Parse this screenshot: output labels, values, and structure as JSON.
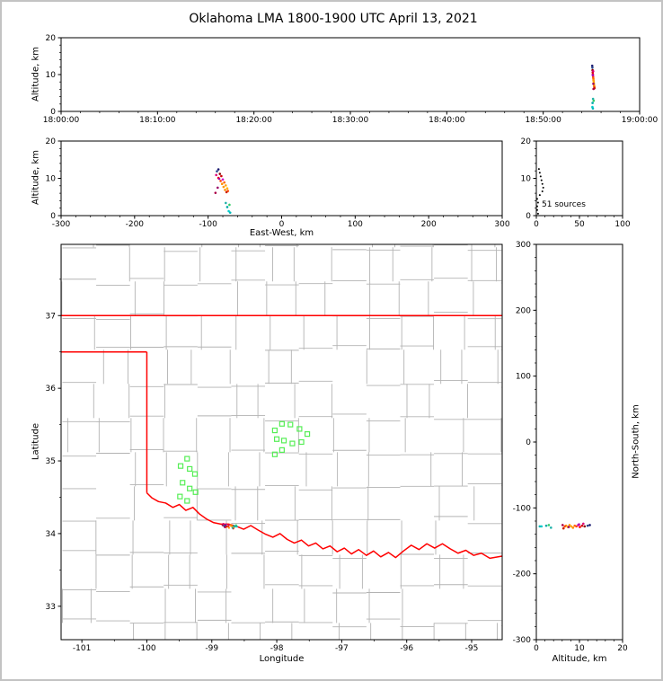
{
  "page": {
    "title": "Oklahoma LMA 1800-1900 UTC April 13, 2021"
  },
  "colors": {
    "axis": "#000000",
    "county": "#b3b3b3",
    "state_border": "#ff0000",
    "station": "#55ee55",
    "histogram": "#000000",
    "background": "#ffffff"
  },
  "chart_data": {
    "charts": [
      {
        "id": "time_height",
        "type": "scatter",
        "xlabel": "",
        "ylabel": "Altitude, km",
        "xlim": [
          0,
          3600
        ],
        "xticks": [
          0,
          600,
          1200,
          1800,
          2400,
          3000,
          3600
        ],
        "xtick_labels": [
          "18:00:00",
          "18:10:00",
          "18:20:00",
          "18:30:00",
          "18:40:00",
          "18:50:00",
          "19:00:00"
        ],
        "xminor_step": 120,
        "ylim": [
          0,
          20
        ],
        "yticks": [
          0,
          10,
          20
        ],
        "yminor_step": 2,
        "series": "sources",
        "x": "t",
        "y": "alt",
        "grid": false
      },
      {
        "id": "ew_height",
        "type": "scatter",
        "xlabel": "East-West, km",
        "ylabel": "Altitude, km",
        "xlim": [
          -300,
          300
        ],
        "xticks": [
          -300,
          -200,
          -100,
          0,
          100,
          200,
          300
        ],
        "xminor_step": 20,
        "ylim": [
          0,
          20
        ],
        "yticks": [
          0,
          10,
          20
        ],
        "yminor_step": 2,
        "series": "sources",
        "x": "ew",
        "y": "alt",
        "grid": false
      },
      {
        "id": "alt_histogram",
        "type": "scatter",
        "xlabel": "",
        "ylabel": "",
        "annotation": "51 sources",
        "xlim": [
          0,
          100
        ],
        "xticks": [
          0,
          50,
          100
        ],
        "xminor_step": 10,
        "ylim": [
          0,
          20
        ],
        "yticks": [
          0,
          10,
          20
        ],
        "yminor_step": 2,
        "series": "altitude_histogram",
        "x": "count",
        "y": "alt",
        "grid": false
      },
      {
        "id": "plan_view",
        "type": "scatter",
        "xlabel": "Longitude",
        "ylabel": "Latitude",
        "xlim": [
          -101.32,
          -94.53
        ],
        "xticks": [
          -101,
          -100,
          -99,
          -98,
          -97,
          -96,
          -95
        ],
        "xminor_step": 0.5,
        "ylim": [
          32.54,
          37.98
        ],
        "yticks": [
          33,
          34,
          35,
          36,
          37
        ],
        "yminor_step": 0.5,
        "series": "sources",
        "x": "lon",
        "y": "lat",
        "grid": false
      },
      {
        "id": "ns_height",
        "type": "scatter",
        "xlabel": "Altitude, km",
        "ylabel": "North-South, km",
        "xlim": [
          0,
          20
        ],
        "xticks": [
          0,
          10,
          20
        ],
        "xminor_step": 2,
        "ylim": [
          -300,
          300
        ],
        "yticks": [
          -300,
          -200,
          -100,
          0,
          100,
          200,
          300
        ],
        "yminor_step": 20,
        "series": "sources",
        "x": "alt",
        "y": "ns",
        "grid": false
      }
    ],
    "sources": [
      {
        "t": 3305,
        "ew": -86,
        "ns": -126,
        "alt": 12.4,
        "lon": -98.79,
        "lat": 34.115,
        "c": "#191970"
      },
      {
        "t": 3306,
        "ew": -88,
        "ns": -127,
        "alt": 11.9,
        "lon": -98.812,
        "lat": 34.106,
        "c": "#26428b"
      },
      {
        "t": 3307,
        "ew": -84,
        "ns": -128,
        "alt": 11.2,
        "lon": -98.768,
        "lat": 34.097,
        "c": "#8b0000"
      },
      {
        "t": 3308,
        "ew": -82,
        "ns": -127,
        "alt": 10.6,
        "lon": -98.746,
        "lat": 34.106,
        "c": "#cc0000"
      },
      {
        "t": 3309,
        "ew": -86,
        "ns": -129,
        "alt": 10.1,
        "lon": -98.79,
        "lat": 34.088,
        "c": "#ff0000"
      },
      {
        "t": 3310,
        "ew": -80,
        "ns": -126,
        "alt": 9.7,
        "lon": -98.724,
        "lat": 34.115,
        "c": "#cc00cc"
      },
      {
        "t": 3311,
        "ew": -83,
        "ns": -128,
        "alt": 9.3,
        "lon": -98.757,
        "lat": 34.097,
        "c": "#ff4500"
      },
      {
        "t": 3312,
        "ew": -78,
        "ns": -127,
        "alt": 8.9,
        "lon": -98.702,
        "lat": 34.106,
        "c": "#ff6600"
      },
      {
        "t": 3313,
        "ew": -81,
        "ns": -130,
        "alt": 8.5,
        "lon": -98.735,
        "lat": 34.079,
        "c": "#ff8c00"
      },
      {
        "t": 3314,
        "ew": -76,
        "ns": -128,
        "alt": 8.1,
        "lon": -98.681,
        "lat": 34.097,
        "c": "#ffa500"
      },
      {
        "t": 3315,
        "ew": -79,
        "ns": -126,
        "alt": 7.7,
        "lon": -98.713,
        "lat": 34.115,
        "c": "#ff9900"
      },
      {
        "t": 3316,
        "ew": -74,
        "ns": -129,
        "alt": 7.3,
        "lon": -98.659,
        "lat": 34.088,
        "c": "#ffb000"
      },
      {
        "t": 3317,
        "ew": -77,
        "ns": -127,
        "alt": 6.9,
        "lon": -98.691,
        "lat": 34.106,
        "c": "#ff8c00"
      },
      {
        "t": 3318,
        "ew": -73,
        "ns": -128,
        "alt": 6.6,
        "lon": -98.648,
        "lat": 34.097,
        "c": "#ff4500"
      },
      {
        "t": 3319,
        "ew": -75,
        "ns": -131,
        "alt": 6.3,
        "lon": -98.67,
        "lat": 34.07,
        "c": "#cc2200"
      },
      {
        "t": 3308,
        "ew": -85,
        "ns": -125,
        "alt": 9.9,
        "lon": -98.779,
        "lat": 34.124,
        "c": "#aa00aa"
      },
      {
        "t": 3312,
        "ew": -87,
        "ns": -129,
        "alt": 7.5,
        "lon": -98.801,
        "lat": 34.088,
        "c": "#990066"
      },
      {
        "t": 3306,
        "ew": -72,
        "ns": -128,
        "alt": 1.2,
        "lon": -98.637,
        "lat": 34.097,
        "c": "#00cccc"
      },
      {
        "t": 3307,
        "ew": -74,
        "ns": -127,
        "alt": 2.3,
        "lon": -98.659,
        "lat": 34.106,
        "c": "#00aaaa"
      },
      {
        "t": 3310,
        "ew": -76,
        "ns": -130,
        "alt": 3.4,
        "lon": -98.681,
        "lat": 34.079,
        "c": "#20b2aa"
      },
      {
        "t": 3311,
        "ew": -89,
        "ns": -124,
        "alt": 10.9,
        "lon": -98.823,
        "lat": 34.133,
        "c": "#dd0077"
      },
      {
        "t": 3313,
        "ew": -90,
        "ns": -126,
        "alt": 6.1,
        "lon": -98.834,
        "lat": 34.115,
        "c": "#aa0044"
      },
      {
        "t": 3309,
        "ew": -70,
        "ns": -128,
        "alt": 0.8,
        "lon": -98.615,
        "lat": 34.097,
        "c": "#00bbbb"
      },
      {
        "t": 3314,
        "ew": -71,
        "ns": -126,
        "alt": 2.9,
        "lon": -98.626,
        "lat": 34.115,
        "c": "#33cc66"
      }
    ],
    "altitude_histogram": [
      {
        "alt": 0.5,
        "count": 2
      },
      {
        "alt": 1.5,
        "count": 1
      },
      {
        "alt": 2.5,
        "count": 1
      },
      {
        "alt": 3.5,
        "count": 2
      },
      {
        "alt": 4.5,
        "count": 1
      },
      {
        "alt": 5.5,
        "count": 4
      },
      {
        "alt": 6.5,
        "count": 7
      },
      {
        "alt": 7.5,
        "count": 8
      },
      {
        "alt": 8.5,
        "count": 7
      },
      {
        "alt": 9.5,
        "count": 6
      },
      {
        "alt": 10.5,
        "count": 5
      },
      {
        "alt": 11.5,
        "count": 4
      },
      {
        "alt": 12.5,
        "count": 3
      }
    ],
    "stations": [
      {
        "lon": -99.38,
        "lat": 35.03
      },
      {
        "lon": -99.48,
        "lat": 34.93
      },
      {
        "lon": -99.34,
        "lat": 34.89
      },
      {
        "lon": -99.26,
        "lat": 34.82
      },
      {
        "lon": -99.45,
        "lat": 34.7
      },
      {
        "lon": -99.34,
        "lat": 34.62
      },
      {
        "lon": -99.49,
        "lat": 34.51
      },
      {
        "lon": -99.38,
        "lat": 34.45
      },
      {
        "lon": -99.25,
        "lat": 34.57
      },
      {
        "lon": -98.03,
        "lat": 35.42
      },
      {
        "lon": -97.92,
        "lat": 35.51
      },
      {
        "lon": -97.79,
        "lat": 35.5
      },
      {
        "lon": -97.65,
        "lat": 35.44
      },
      {
        "lon": -97.53,
        "lat": 35.37
      },
      {
        "lon": -98.0,
        "lat": 35.3
      },
      {
        "lon": -97.89,
        "lat": 35.28
      },
      {
        "lon": -97.76,
        "lat": 35.24
      },
      {
        "lon": -97.62,
        "lat": 35.26
      },
      {
        "lon": -97.92,
        "lat": 35.15
      },
      {
        "lon": -98.03,
        "lat": 35.09
      }
    ],
    "state_borders": [
      [
        [
          -101.32,
          37.0
        ],
        [
          -94.53,
          37.0
        ]
      ],
      [
        [
          -101.32,
          36.5
        ],
        [
          -100.0,
          36.5
        ]
      ],
      [
        [
          -100.0,
          36.5
        ],
        [
          -100.0,
          34.56
        ]
      ],
      [
        [
          -100.0,
          34.56
        ],
        [
          -99.92,
          34.49
        ],
        [
          -99.82,
          34.44
        ],
        [
          -99.71,
          34.42
        ],
        [
          -99.6,
          34.36
        ],
        [
          -99.5,
          34.4
        ],
        [
          -99.4,
          34.32
        ],
        [
          -99.29,
          34.36
        ],
        [
          -99.19,
          34.27
        ],
        [
          -99.08,
          34.2
        ],
        [
          -98.97,
          34.15
        ],
        [
          -98.86,
          34.13
        ],
        [
          -98.74,
          34.13
        ],
        [
          -98.62,
          34.1
        ],
        [
          -98.51,
          34.06
        ],
        [
          -98.4,
          34.11
        ],
        [
          -98.29,
          34.05
        ],
        [
          -98.17,
          33.99
        ],
        [
          -98.06,
          33.95
        ],
        [
          -97.95,
          34.0
        ],
        [
          -97.84,
          33.92
        ],
        [
          -97.73,
          33.87
        ],
        [
          -97.62,
          33.91
        ],
        [
          -97.51,
          33.83
        ],
        [
          -97.4,
          33.87
        ],
        [
          -97.29,
          33.79
        ],
        [
          -97.18,
          33.83
        ],
        [
          -97.07,
          33.75
        ],
        [
          -96.96,
          33.8
        ],
        [
          -96.85,
          33.72
        ],
        [
          -96.74,
          33.78
        ],
        [
          -96.62,
          33.7
        ],
        [
          -96.51,
          33.76
        ],
        [
          -96.4,
          33.68
        ],
        [
          -96.28,
          33.74
        ],
        [
          -96.17,
          33.67
        ],
        [
          -96.05,
          33.76
        ],
        [
          -95.93,
          33.84
        ],
        [
          -95.81,
          33.78
        ],
        [
          -95.69,
          33.86
        ],
        [
          -95.57,
          33.8
        ],
        [
          -95.45,
          33.86
        ],
        [
          -95.33,
          33.79
        ],
        [
          -95.21,
          33.73
        ],
        [
          -95.09,
          33.77
        ],
        [
          -94.97,
          33.7
        ],
        [
          -94.85,
          33.73
        ],
        [
          -94.72,
          33.66
        ],
        [
          -94.53,
          33.69
        ]
      ]
    ],
    "county_grid": {
      "lon_start": -101.3,
      "dlon": 0.52,
      "lat_start": 32.3,
      "dlat": 0.47,
      "jitter": 0.12
    }
  }
}
